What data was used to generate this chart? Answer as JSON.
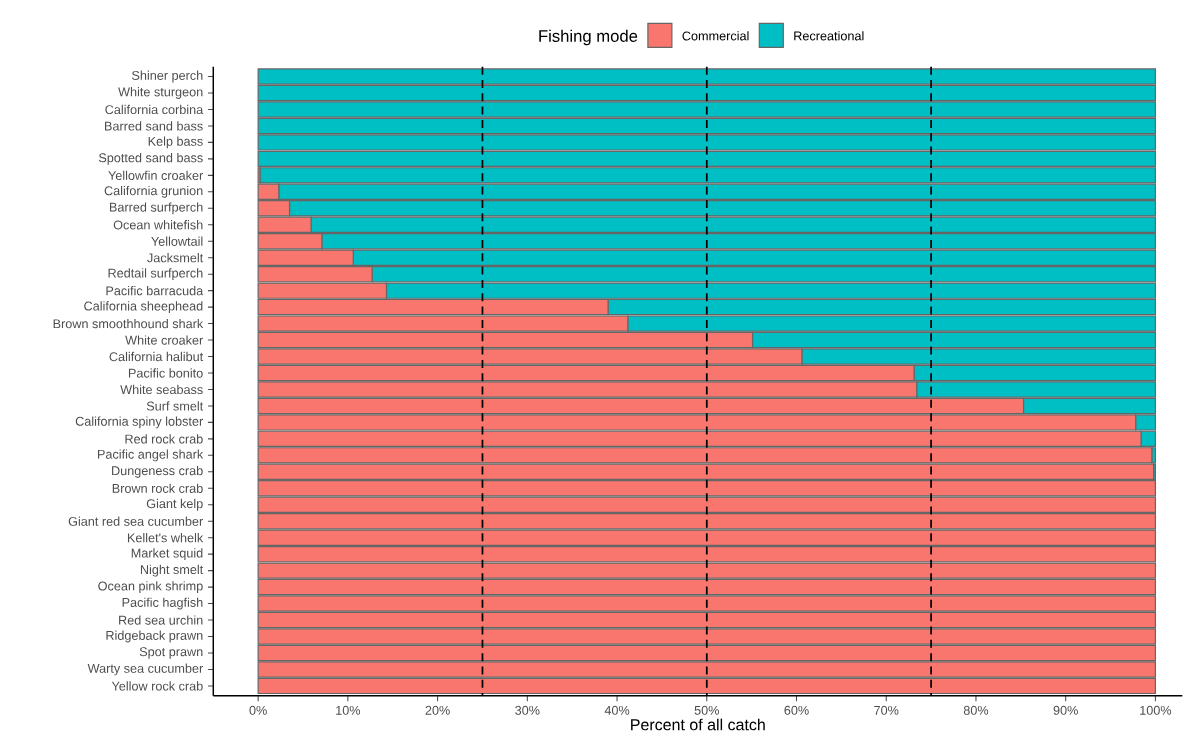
{
  "chart_data": {
    "type": "bar",
    "orientation": "horizontal",
    "stacked": true,
    "categories": [
      "Shiner perch",
      "White sturgeon",
      "California corbina",
      "Barred sand bass",
      "Kelp bass",
      "Spotted sand bass",
      "Yellowfin croaker",
      "California grunion",
      "Barred surfperch",
      "Ocean whitefish",
      "Yellowtail",
      "Jacksmelt",
      "Redtail surfperch",
      "Pacific barracuda",
      "California sheephead",
      "Brown smoothhound shark",
      "White croaker",
      "California halibut",
      "Pacific bonito",
      "White seabass",
      "Surf smelt",
      "California spiny lobster",
      "Red rock crab",
      "Pacific angel shark",
      "Dungeness crab",
      "Brown rock crab",
      "Giant kelp",
      "Giant red sea cucumber",
      "Kellet's whelk",
      "Market squid",
      "Night smelt",
      "Ocean pink shrimp",
      "Pacific hagfish",
      "Red sea urchin",
      "Ridgeback prawn",
      "Spot prawn",
      "Warty sea cucumber",
      "Yellow rock crab"
    ],
    "series": [
      {
        "name": "Commercial",
        "color": "#f8766d",
        "values": [
          0,
          0,
          0,
          0,
          0,
          0,
          0.2,
          2.3,
          3.5,
          5.9,
          7.1,
          10.6,
          12.7,
          14.3,
          39.0,
          41.2,
          55.1,
          60.6,
          73.1,
          73.4,
          85.3,
          97.8,
          98.4,
          99.6,
          99.8,
          100,
          100,
          100,
          100,
          100,
          100,
          100,
          100,
          100,
          100,
          100,
          100,
          100
        ]
      },
      {
        "name": "Recreational",
        "color": "#00bfc4",
        "values": [
          100,
          100,
          100,
          100,
          100,
          100,
          99.8,
          97.7,
          96.5,
          94.1,
          92.9,
          89.4,
          87.3,
          85.7,
          61.0,
          58.8,
          44.9,
          39.4,
          26.9,
          26.6,
          14.7,
          2.2,
          1.6,
          0.4,
          0.2,
          0,
          0,
          0,
          0,
          0,
          0,
          0,
          0,
          0,
          0,
          0,
          0,
          0
        ]
      }
    ],
    "xlim": [
      -5,
      103
    ],
    "xticks": [
      {
        "value": 0,
        "label": "0%"
      },
      {
        "value": 10,
        "label": "10%"
      },
      {
        "value": 20,
        "label": "20%"
      },
      {
        "value": 30,
        "label": "30%"
      },
      {
        "value": 40,
        "label": "40%"
      },
      {
        "value": 50,
        "label": "50%"
      },
      {
        "value": 60,
        "label": "60%"
      },
      {
        "value": 70,
        "label": "70%"
      },
      {
        "value": 80,
        "label": "80%"
      },
      {
        "value": 90,
        "label": "90%"
      },
      {
        "value": 100,
        "label": "100%"
      }
    ],
    "xlabel": "Percent of all catch",
    "legend_title": "Fishing mode",
    "legend": "top",
    "ref_lines": [
      {
        "axis": "x",
        "value": 25,
        "color": "#000000",
        "line_style": "dashed"
      },
      {
        "axis": "x",
        "value": 50,
        "color": "#000000",
        "line_style": "dashed"
      },
      {
        "axis": "x",
        "value": 75,
        "color": "#000000",
        "line_style": "dashed"
      }
    ]
  }
}
